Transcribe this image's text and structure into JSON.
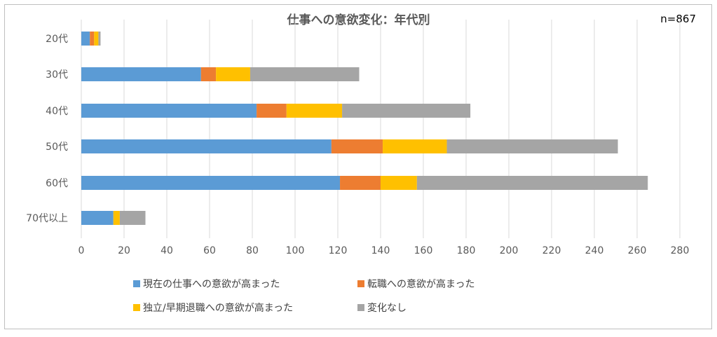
{
  "title": "仕事への意欲変化：年代別",
  "n_label": "n=867",
  "chart_data": {
    "type": "bar",
    "orientation": "horizontal",
    "stacked": true,
    "title": "仕事への意欲変化：年代別",
    "categories": [
      "20代",
      "30代",
      "40代",
      "50代",
      "60代",
      "70代以上"
    ],
    "series": [
      {
        "name": "現在の仕事への意欲が高まった",
        "color": "#5b9bd5",
        "values": [
          4,
          56,
          82,
          117,
          121,
          15
        ]
      },
      {
        "name": "転職への意欲が高まった",
        "color": "#ed7d31",
        "values": [
          2,
          7,
          14,
          24,
          19,
          0
        ]
      },
      {
        "name": "独立/早期退職への意欲が高まった",
        "color": "#ffc000",
        "values": [
          2,
          16,
          26,
          30,
          17,
          3
        ]
      },
      {
        "name": "変化なし",
        "color": "#a5a5a5",
        "values": [
          1,
          51,
          60,
          80,
          108,
          12
        ]
      }
    ],
    "xlim": [
      0,
      280
    ],
    "xticks": [
      0,
      20,
      40,
      60,
      80,
      100,
      120,
      140,
      160,
      180,
      200,
      220,
      240,
      260,
      280
    ],
    "grid": true,
    "legend_position": "bottom"
  }
}
